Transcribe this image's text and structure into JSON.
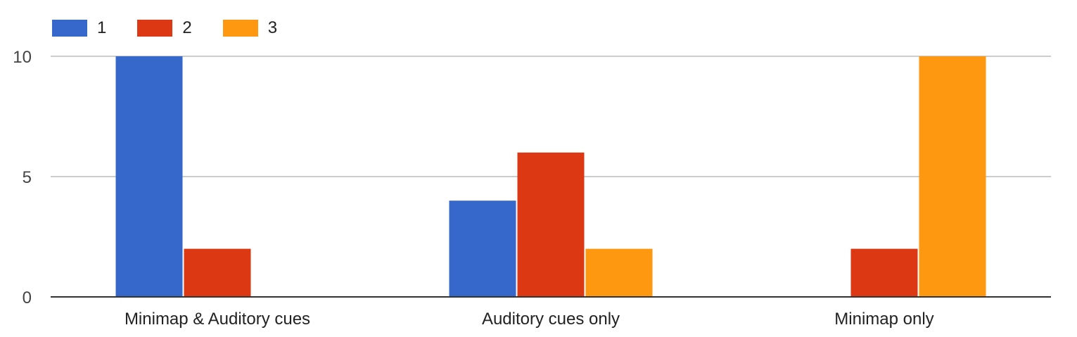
{
  "chart_data": {
    "type": "bar",
    "categories": [
      "Minimap & Auditory cues",
      "Auditory cues only",
      "Minimap only"
    ],
    "series": [
      {
        "name": "1",
        "color": "#3668cc",
        "values": [
          10,
          4,
          0
        ]
      },
      {
        "name": "2",
        "color": "#dc3813",
        "values": [
          2,
          6,
          2
        ]
      },
      {
        "name": "3",
        "color": "#fe9810",
        "values": [
          0,
          2,
          10
        ]
      }
    ],
    "y_ticks": [
      "0",
      "5",
      "10"
    ],
    "ylim": [
      0,
      10
    ],
    "grid": true,
    "legend_position": "top-left"
  }
}
